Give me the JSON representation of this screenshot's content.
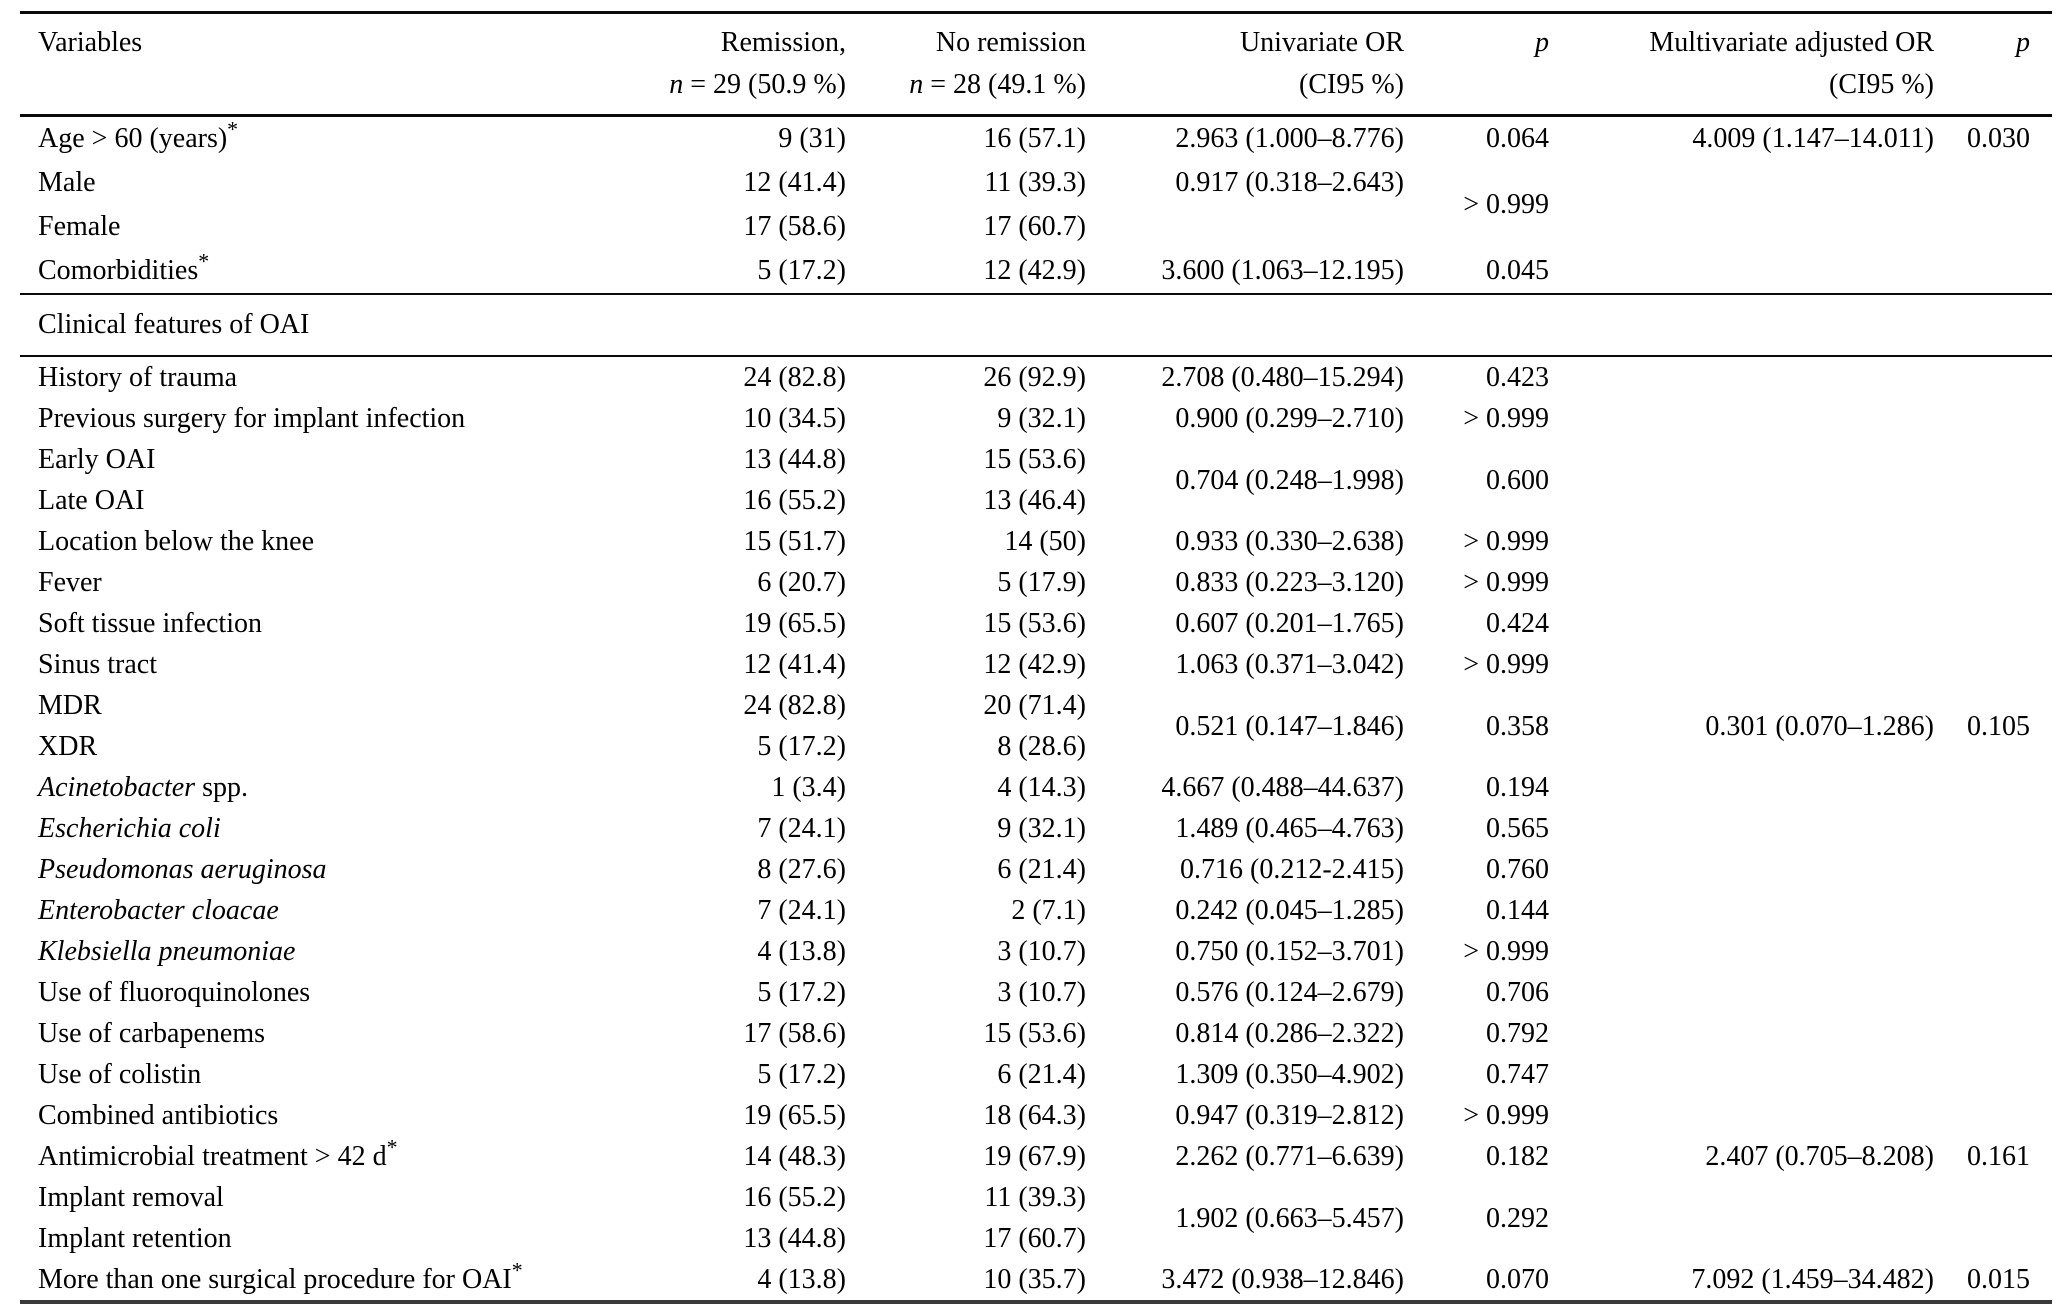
{
  "table": {
    "columns": [
      {
        "id": "variable",
        "line1": "Variables",
        "line2": ""
      },
      {
        "id": "remission",
        "line1": "Remission,",
        "line2": "~n~ = 29 (50.9 %)"
      },
      {
        "id": "no_remission",
        "line1": "No remission",
        "line2": "~n~ = 28 (49.1 %)"
      },
      {
        "id": "univariate_or",
        "line1": "Univariate OR",
        "line2": "(CI95 %)"
      },
      {
        "id": "p_univariate",
        "line1": "~p~",
        "line2": ""
      },
      {
        "id": "multivariate_or",
        "line1": "Multivariate adjusted OR",
        "line2": "(CI95 %)"
      },
      {
        "id": "p_multivariate",
        "line1": "~p~",
        "line2": ""
      }
    ],
    "rows": [
      {
        "cells": [
          {
            "c": "variable",
            "t": "Age > 60 (years)^*^"
          },
          {
            "c": "remission",
            "t": "9 (31)"
          },
          {
            "c": "no_remission",
            "t": "16 (57.1)"
          },
          {
            "c": "univariate_or",
            "t": "2.963 (1.000–8.776)"
          },
          {
            "c": "p_univariate",
            "t": "0.064"
          },
          {
            "c": "multivariate_or",
            "t": "4.009 (1.147–14.011)"
          },
          {
            "c": "p_multivariate",
            "t": "0.030"
          }
        ]
      },
      {
        "cells": [
          {
            "c": "variable",
            "t": "Male"
          },
          {
            "c": "remission",
            "t": "12 (41.4)"
          },
          {
            "c": "no_remission",
            "t": "11 (39.3)"
          },
          {
            "c": "univariate_or",
            "t": "0.917 (0.318–2.643)"
          },
          {
            "c": "p_univariate",
            "t": "> 0.999",
            "rs": 2
          },
          {
            "c": "multivariate_or",
            "t": ""
          },
          {
            "c": "p_multivariate",
            "t": ""
          }
        ]
      },
      {
        "cells": [
          {
            "c": "variable",
            "t": "Female"
          },
          {
            "c": "remission",
            "t": "17 (58.6)"
          },
          {
            "c": "no_remission",
            "t": "17 (60.7)"
          },
          {
            "c": "univariate_or",
            "t": ""
          },
          {
            "c": "multivariate_or",
            "t": ""
          },
          {
            "c": "p_multivariate",
            "t": ""
          }
        ]
      },
      {
        "cells": [
          {
            "c": "variable",
            "t": "Comorbidities^*^"
          },
          {
            "c": "remission",
            "t": "5 (17.2)"
          },
          {
            "c": "no_remission",
            "t": "12 (42.9)"
          },
          {
            "c": "univariate_or",
            "t": "3.600 (1.063–12.195)"
          },
          {
            "c": "p_univariate",
            "t": "0.045"
          },
          {
            "c": "multivariate_or",
            "t": ""
          },
          {
            "c": "p_multivariate",
            "t": ""
          }
        ]
      },
      {
        "section_label": "Clinical features of OAI"
      },
      {
        "cells": [
          {
            "c": "variable",
            "t": "History of trauma"
          },
          {
            "c": "remission",
            "t": "24 (82.8)"
          },
          {
            "c": "no_remission",
            "t": "26 (92.9)"
          },
          {
            "c": "univariate_or",
            "t": "2.708 (0.480–15.294)"
          },
          {
            "c": "p_univariate",
            "t": "0.423"
          },
          {
            "c": "multivariate_or",
            "t": ""
          },
          {
            "c": "p_multivariate",
            "t": ""
          }
        ]
      },
      {
        "cells": [
          {
            "c": "variable",
            "t": "Previous surgery for implant infection"
          },
          {
            "c": "remission",
            "t": "10 (34.5)"
          },
          {
            "c": "no_remission",
            "t": "9 (32.1)"
          },
          {
            "c": "univariate_or",
            "t": "0.900 (0.299–2.710)"
          },
          {
            "c": "p_univariate",
            "t": "> 0.999"
          },
          {
            "c": "multivariate_or",
            "t": ""
          },
          {
            "c": "p_multivariate",
            "t": ""
          }
        ]
      },
      {
        "cells": [
          {
            "c": "variable",
            "t": "Early OAI"
          },
          {
            "c": "remission",
            "t": "13 (44.8)"
          },
          {
            "c": "no_remission",
            "t": "15 (53.6)"
          },
          {
            "c": "univariate_or",
            "t": "0.704 (0.248–1.998)",
            "rs": 2
          },
          {
            "c": "p_univariate",
            "t": "0.600",
            "rs": 2
          },
          {
            "c": "multivariate_or",
            "t": ""
          },
          {
            "c": "p_multivariate",
            "t": ""
          }
        ]
      },
      {
        "cells": [
          {
            "c": "variable",
            "t": "Late OAI"
          },
          {
            "c": "remission",
            "t": "16 (55.2)"
          },
          {
            "c": "no_remission",
            "t": "13 (46.4)"
          },
          {
            "c": "multivariate_or",
            "t": ""
          },
          {
            "c": "p_multivariate",
            "t": ""
          }
        ]
      },
      {
        "cells": [
          {
            "c": "variable",
            "t": "Location below the knee"
          },
          {
            "c": "remission",
            "t": "15 (51.7)"
          },
          {
            "c": "no_remission",
            "t": "14 (50)"
          },
          {
            "c": "univariate_or",
            "t": "0.933 (0.330–2.638)"
          },
          {
            "c": "p_univariate",
            "t": "> 0.999"
          },
          {
            "c": "multivariate_or",
            "t": ""
          },
          {
            "c": "p_multivariate",
            "t": ""
          }
        ]
      },
      {
        "cells": [
          {
            "c": "variable",
            "t": "Fever"
          },
          {
            "c": "remission",
            "t": "6 (20.7)"
          },
          {
            "c": "no_remission",
            "t": "5 (17.9)"
          },
          {
            "c": "univariate_or",
            "t": "0.833 (0.223–3.120)"
          },
          {
            "c": "p_univariate",
            "t": "> 0.999"
          },
          {
            "c": "multivariate_or",
            "t": ""
          },
          {
            "c": "p_multivariate",
            "t": ""
          }
        ]
      },
      {
        "cells": [
          {
            "c": "variable",
            "t": "Soft tissue infection"
          },
          {
            "c": "remission",
            "t": "19 (65.5)"
          },
          {
            "c": "no_remission",
            "t": "15 (53.6)"
          },
          {
            "c": "univariate_or",
            "t": "0.607 (0.201–1.765)"
          },
          {
            "c": "p_univariate",
            "t": "0.424"
          },
          {
            "c": "multivariate_or",
            "t": ""
          },
          {
            "c": "p_multivariate",
            "t": ""
          }
        ]
      },
      {
        "cells": [
          {
            "c": "variable",
            "t": "Sinus tract"
          },
          {
            "c": "remission",
            "t": "12 (41.4)"
          },
          {
            "c": "no_remission",
            "t": "12 (42.9)"
          },
          {
            "c": "univariate_or",
            "t": "1.063 (0.371–3.042)"
          },
          {
            "c": "p_univariate",
            "t": "> 0.999"
          },
          {
            "c": "multivariate_or",
            "t": ""
          },
          {
            "c": "p_multivariate",
            "t": ""
          }
        ]
      },
      {
        "cells": [
          {
            "c": "variable",
            "t": "MDR"
          },
          {
            "c": "remission",
            "t": "24 (82.8)"
          },
          {
            "c": "no_remission",
            "t": "20 (71.4)"
          },
          {
            "c": "univariate_or",
            "t": "0.521 (0.147–1.846)",
            "rs": 2
          },
          {
            "c": "p_univariate",
            "t": "0.358",
            "rs": 2
          },
          {
            "c": "multivariate_or",
            "t": "0.301 (0.070–1.286)",
            "rs": 2
          },
          {
            "c": "p_multivariate",
            "t": "0.105",
            "rs": 2
          }
        ]
      },
      {
        "cells": [
          {
            "c": "variable",
            "t": "XDR"
          },
          {
            "c": "remission",
            "t": "5 (17.2)"
          },
          {
            "c": "no_remission",
            "t": "8 (28.6)"
          }
        ]
      },
      {
        "cells": [
          {
            "c": "variable",
            "t": "~Acinetobacter~ spp."
          },
          {
            "c": "remission",
            "t": "1 (3.4)"
          },
          {
            "c": "no_remission",
            "t": "4 (14.3)"
          },
          {
            "c": "univariate_or",
            "t": "4.667 (0.488–44.637)"
          },
          {
            "c": "p_univariate",
            "t": "0.194"
          },
          {
            "c": "multivariate_or",
            "t": ""
          },
          {
            "c": "p_multivariate",
            "t": ""
          }
        ]
      },
      {
        "cells": [
          {
            "c": "variable",
            "t": "~Escherichia coli~"
          },
          {
            "c": "remission",
            "t": "7 (24.1)"
          },
          {
            "c": "no_remission",
            "t": "9 (32.1)"
          },
          {
            "c": "univariate_or",
            "t": "1.489 (0.465–4.763)"
          },
          {
            "c": "p_univariate",
            "t": "0.565"
          },
          {
            "c": "multivariate_or",
            "t": ""
          },
          {
            "c": "p_multivariate",
            "t": ""
          }
        ]
      },
      {
        "cells": [
          {
            "c": "variable",
            "t": "~Pseudomonas aeruginosa~"
          },
          {
            "c": "remission",
            "t": "8 (27.6)"
          },
          {
            "c": "no_remission",
            "t": "6 (21.4)"
          },
          {
            "c": "univariate_or",
            "t": "0.716 (0.212-2.415)"
          },
          {
            "c": "p_univariate",
            "t": "0.760"
          },
          {
            "c": "multivariate_or",
            "t": ""
          },
          {
            "c": "p_multivariate",
            "t": ""
          }
        ]
      },
      {
        "cells": [
          {
            "c": "variable",
            "t": "~Enterobacter cloacae~"
          },
          {
            "c": "remission",
            "t": "7 (24.1)"
          },
          {
            "c": "no_remission",
            "t": "2 (7.1)"
          },
          {
            "c": "univariate_or",
            "t": "0.242 (0.045–1.285)"
          },
          {
            "c": "p_univariate",
            "t": "0.144"
          },
          {
            "c": "multivariate_or",
            "t": ""
          },
          {
            "c": "p_multivariate",
            "t": ""
          }
        ]
      },
      {
        "cells": [
          {
            "c": "variable",
            "t": "~Klebsiella pneumoniae~"
          },
          {
            "c": "remission",
            "t": "4 (13.8)"
          },
          {
            "c": "no_remission",
            "t": "3 (10.7)"
          },
          {
            "c": "univariate_or",
            "t": "0.750 (0.152–3.701)"
          },
          {
            "c": "p_univariate",
            "t": "> 0.999"
          },
          {
            "c": "multivariate_or",
            "t": ""
          },
          {
            "c": "p_multivariate",
            "t": ""
          }
        ]
      },
      {
        "cells": [
          {
            "c": "variable",
            "t": "Use of fluoroquinolones"
          },
          {
            "c": "remission",
            "t": "5 (17.2)"
          },
          {
            "c": "no_remission",
            "t": "3 (10.7)"
          },
          {
            "c": "univariate_or",
            "t": "0.576 (0.124–2.679)"
          },
          {
            "c": "p_univariate",
            "t": "0.706"
          },
          {
            "c": "multivariate_or",
            "t": ""
          },
          {
            "c": "p_multivariate",
            "t": ""
          }
        ]
      },
      {
        "cells": [
          {
            "c": "variable",
            "t": "Use of carbapenems"
          },
          {
            "c": "remission",
            "t": "17 (58.6)"
          },
          {
            "c": "no_remission",
            "t": "15 (53.6)"
          },
          {
            "c": "univariate_or",
            "t": "0.814 (0.286–2.322)"
          },
          {
            "c": "p_univariate",
            "t": "0.792"
          },
          {
            "c": "multivariate_or",
            "t": ""
          },
          {
            "c": "p_multivariate",
            "t": ""
          }
        ]
      },
      {
        "cells": [
          {
            "c": "variable",
            "t": "Use of colistin"
          },
          {
            "c": "remission",
            "t": "5 (17.2)"
          },
          {
            "c": "no_remission",
            "t": "6 (21.4)"
          },
          {
            "c": "univariate_or",
            "t": "1.309 (0.350–4.902)"
          },
          {
            "c": "p_univariate",
            "t": "0.747"
          },
          {
            "c": "multivariate_or",
            "t": ""
          },
          {
            "c": "p_multivariate",
            "t": ""
          }
        ]
      },
      {
        "cells": [
          {
            "c": "variable",
            "t": "Combined antibiotics"
          },
          {
            "c": "remission",
            "t": "19 (65.5)"
          },
          {
            "c": "no_remission",
            "t": "18 (64.3)"
          },
          {
            "c": "univariate_or",
            "t": "0.947 (0.319–2.812)"
          },
          {
            "c": "p_univariate",
            "t": "> 0.999"
          },
          {
            "c": "multivariate_or",
            "t": ""
          },
          {
            "c": "p_multivariate",
            "t": ""
          }
        ]
      },
      {
        "cells": [
          {
            "c": "variable",
            "t": "Antimicrobial treatment > 42 d^*^"
          },
          {
            "c": "remission",
            "t": "14 (48.3)"
          },
          {
            "c": "no_remission",
            "t": "19 (67.9)"
          },
          {
            "c": "univariate_or",
            "t": "2.262 (0.771–6.639)"
          },
          {
            "c": "p_univariate",
            "t": "0.182"
          },
          {
            "c": "multivariate_or",
            "t": "2.407 (0.705–8.208)"
          },
          {
            "c": "p_multivariate",
            "t": "0.161"
          }
        ]
      },
      {
        "cells": [
          {
            "c": "variable",
            "t": "Implant removal"
          },
          {
            "c": "remission",
            "t": "16 (55.2)"
          },
          {
            "c": "no_remission",
            "t": "11 (39.3)"
          },
          {
            "c": "univariate_or",
            "t": "1.902 (0.663–5.457)",
            "rs": 2
          },
          {
            "c": "p_univariate",
            "t": "0.292",
            "rs": 2
          },
          {
            "c": "multivariate_or",
            "t": ""
          },
          {
            "c": "p_multivariate",
            "t": ""
          }
        ]
      },
      {
        "cells": [
          {
            "c": "variable",
            "t": "Implant retention"
          },
          {
            "c": "remission",
            "t": "13 (44.8)"
          },
          {
            "c": "no_remission",
            "t": "17 (60.7)"
          },
          {
            "c": "multivariate_or",
            "t": ""
          },
          {
            "c": "p_multivariate",
            "t": ""
          }
        ]
      },
      {
        "cells": [
          {
            "c": "variable",
            "t": "More than one surgical procedure for OAI^*^"
          },
          {
            "c": "remission",
            "t": "4 (13.8)"
          },
          {
            "c": "no_remission",
            "t": "10 (35.7)"
          },
          {
            "c": "univariate_or",
            "t": "3.472 (0.938–12.846)"
          },
          {
            "c": "p_univariate",
            "t": "0.070"
          },
          {
            "c": "multivariate_or",
            "t": "7.092 (1.459–34.482)"
          },
          {
            "c": "p_multivariate",
            "t": "0.015"
          }
        ]
      }
    ]
  }
}
